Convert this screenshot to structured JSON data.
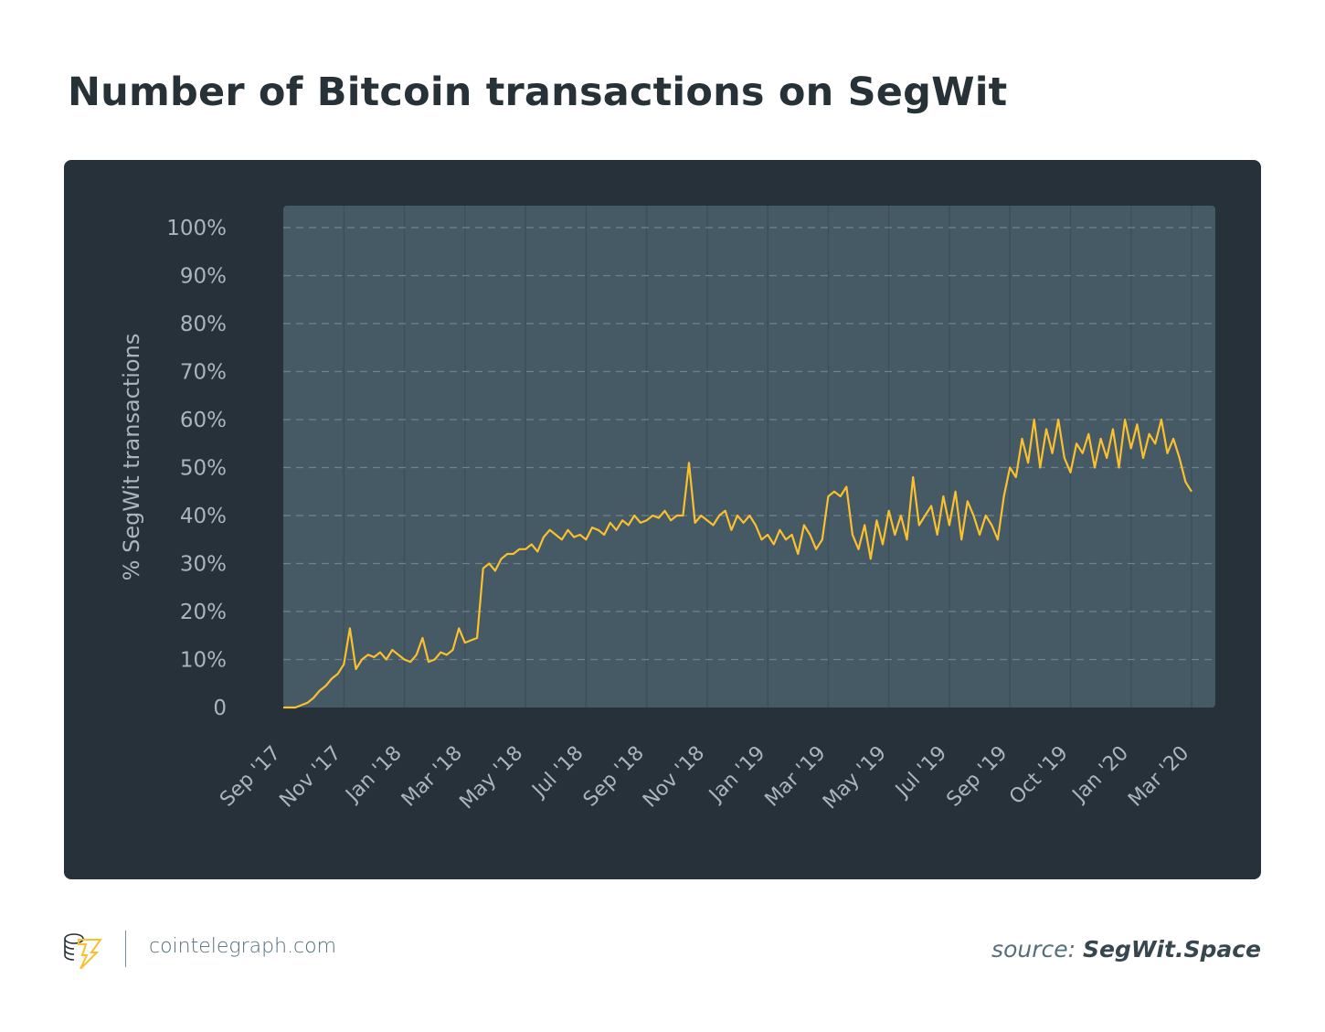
{
  "title": "Number of Bitcoin transactions on SegWit",
  "chart_data": {
    "type": "line",
    "title": "Number of Bitcoin transactions on SegWit",
    "ylabel": "% SegWit transactions",
    "xlabel": "",
    "ylim": [
      0,
      100
    ],
    "y_ticks": [
      "0",
      "10%",
      "20%",
      "30%",
      "40%",
      "50%",
      "60%",
      "70%",
      "80%",
      "90%",
      "100%"
    ],
    "x_ticks": [
      "Sep '17",
      "Nov '17",
      "Jan '18",
      "Mar '18",
      "May '18",
      "Jul '18",
      "Sep '18",
      "Nov '18",
      "Jan '19",
      "Mar '19",
      "May '19",
      "Jul '19",
      "Sep '19",
      "Oct '19",
      "Jan '20",
      "Mar '20"
    ],
    "grid": true,
    "series": [
      {
        "color": "#fbc02d",
        "values": [
          0,
          0,
          0,
          0.5,
          1,
          2,
          3.5,
          4.5,
          6,
          7,
          9,
          16.5,
          8,
          10,
          11,
          10.5,
          11.5,
          10,
          12,
          11,
          10,
          9.5,
          11,
          14.5,
          9.5,
          10,
          11.5,
          11,
          12,
          16.5,
          13.5,
          14,
          14.5,
          29,
          30,
          28.5,
          31,
          32,
          32,
          33,
          33,
          34,
          32.5,
          35.5,
          37,
          36,
          35,
          37,
          35.5,
          36,
          35,
          37.5,
          37,
          36,
          38.5,
          37,
          39,
          38,
          40,
          38.5,
          39,
          40,
          39.5,
          41,
          39,
          40,
          40,
          51,
          38.5,
          40,
          39,
          38,
          40,
          41,
          37,
          40,
          38.5,
          40,
          38,
          35,
          36,
          34,
          37,
          35,
          36,
          32,
          38,
          36,
          33,
          35,
          44,
          45,
          44,
          46,
          36,
          33,
          38,
          31,
          39,
          34,
          41,
          36,
          40,
          35,
          48,
          38,
          40,
          42,
          36,
          44,
          38,
          45,
          35,
          43,
          40,
          36,
          40,
          38,
          35,
          44,
          50,
          48,
          56,
          51,
          60,
          50,
          58,
          53,
          60,
          52,
          49,
          55,
          53,
          57,
          50,
          56,
          52,
          58,
          50,
          60,
          54,
          59,
          52,
          57,
          55,
          60,
          53,
          56,
          52,
          47,
          45
        ]
      }
    ]
  },
  "footer": {
    "site": "cointelegraph.com",
    "source_prefix": "source:",
    "source_name": "SegWit.Space"
  },
  "colors": {
    "card_bg": "#263139",
    "plot_bg": "#465a66",
    "line": "#fbc02d",
    "tick_text": "#aab6bd"
  }
}
